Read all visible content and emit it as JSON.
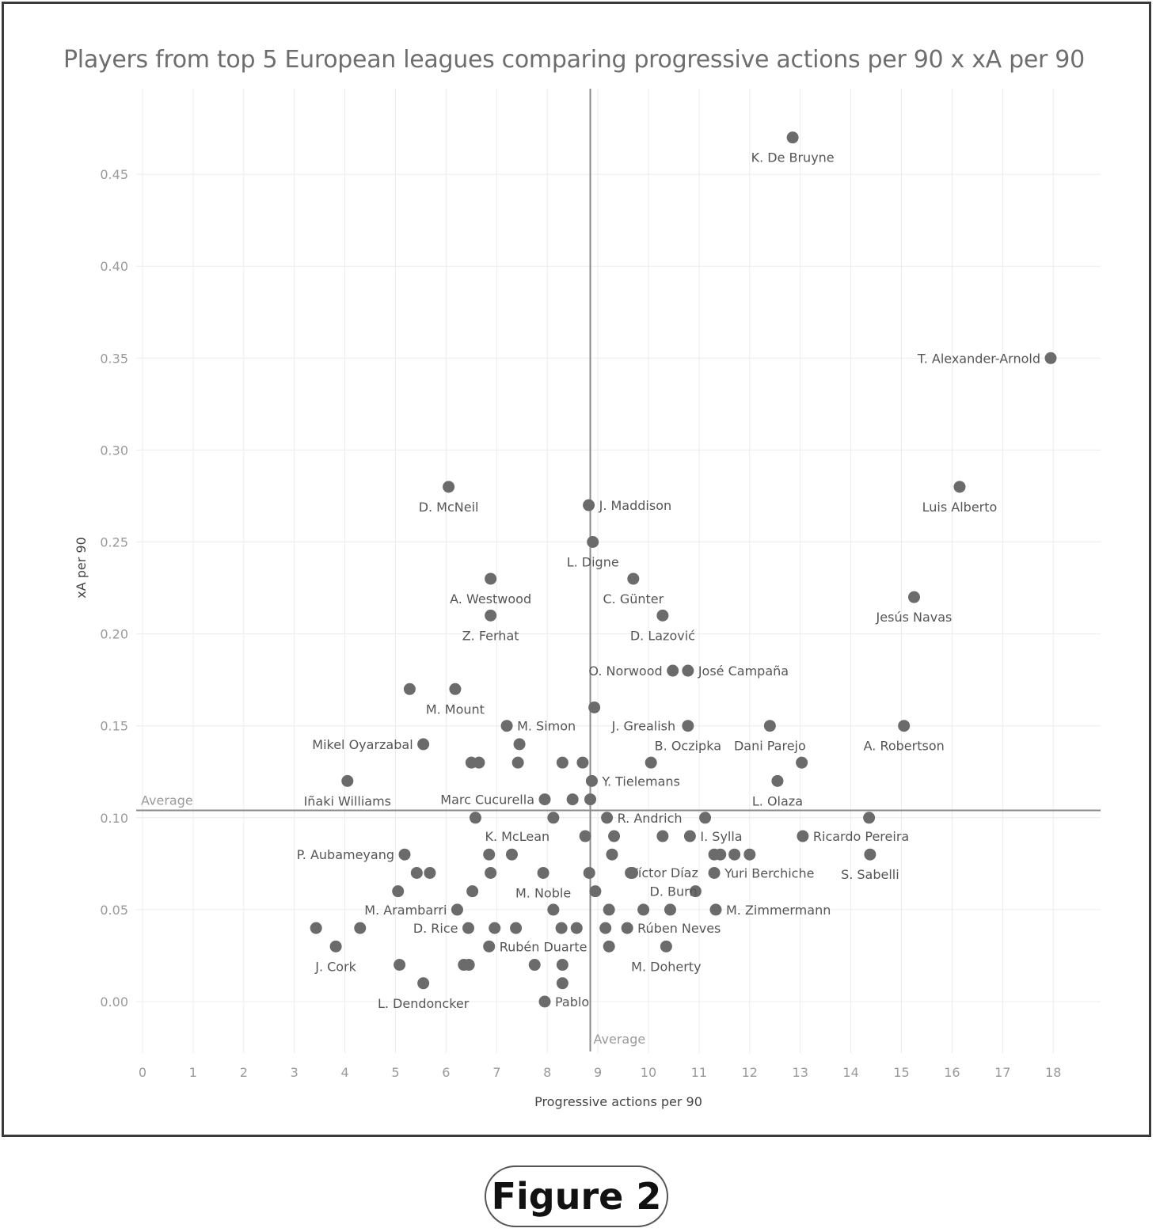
{
  "figure_label": "Figure 2",
  "chart_data": {
    "type": "scatter",
    "title": "Players from top 5 European leagues comparing progressive actions per 90 x xA per 90",
    "xlabel": "Progressive actions per 90",
    "ylabel": "xA per 90",
    "xlim": [
      0,
      19
    ],
    "ylim": [
      -0.027,
      0.495
    ],
    "xticks": [
      0,
      1,
      2,
      3,
      4,
      5,
      6,
      7,
      8,
      9,
      10,
      11,
      12,
      13,
      14,
      15,
      16,
      17,
      18
    ],
    "yticks": [
      0.0,
      0.05,
      0.1,
      0.15,
      0.2,
      0.25,
      0.3,
      0.35,
      0.4,
      0.45
    ],
    "ytick_labels": [
      "0.00",
      "0.05",
      "0.10",
      "0.15",
      "0.20",
      "0.25",
      "0.30",
      "0.35",
      "0.40",
      "0.45"
    ],
    "grid": true,
    "colors": {
      "point": "#6b6b6b",
      "grid": "#ececec",
      "reference_line": "#8a8a8a"
    },
    "reference_lines": {
      "x_average": {
        "value": 8.85,
        "label": "Average"
      },
      "y_average": {
        "value": 0.104,
        "label": "Average"
      }
    },
    "labeled_points": [
      {
        "name": "K. De Bruyne",
        "x": 12.85,
        "y": 0.47,
        "label_pos": "below"
      },
      {
        "name": "T. Alexander-Arnold",
        "x": 17.95,
        "y": 0.35,
        "label_pos": "left"
      },
      {
        "name": "D. McNeil",
        "x": 6.05,
        "y": 0.28,
        "label_pos": "below"
      },
      {
        "name": "J. Maddison",
        "x": 8.82,
        "y": 0.27,
        "label_pos": "right"
      },
      {
        "name": "Luis Alberto",
        "x": 16.15,
        "y": 0.28,
        "label_pos": "below"
      },
      {
        "name": "L. Digne",
        "x": 8.9,
        "y": 0.25,
        "label_pos": "below"
      },
      {
        "name": "A. Westwood",
        "x": 6.88,
        "y": 0.23,
        "label_pos": "below"
      },
      {
        "name": "C. Günter",
        "x": 9.7,
        "y": 0.23,
        "label_pos": "below"
      },
      {
        "name": "Jesús Navas",
        "x": 15.25,
        "y": 0.22,
        "label_pos": "below"
      },
      {
        "name": "Z. Ferhat",
        "x": 6.88,
        "y": 0.21,
        "label_pos": "below"
      },
      {
        "name": "D. Lazović",
        "x": 10.28,
        "y": 0.21,
        "label_pos": "below"
      },
      {
        "name": "O. Norwood",
        "x": 10.48,
        "y": 0.18,
        "label_pos": "left"
      },
      {
        "name": "José Campaña",
        "x": 10.78,
        "y": 0.18,
        "label_pos": "right"
      },
      {
        "name": "M. Mount",
        "x": 6.18,
        "y": 0.17,
        "label_pos": "below"
      },
      {
        "name": "J. Grealish",
        "x": 8.93,
        "y": 0.16,
        "label_pos": "right-below"
      },
      {
        "name": "M. Simon",
        "x": 7.2,
        "y": 0.15,
        "label_pos": "right"
      },
      {
        "name": "B. Oczipka",
        "x": 10.78,
        "y": 0.15,
        "label_pos": "below"
      },
      {
        "name": "Dani Parejo",
        "x": 12.4,
        "y": 0.15,
        "label_pos": "below"
      },
      {
        "name": "A. Robertson",
        "x": 15.05,
        "y": 0.15,
        "label_pos": "below"
      },
      {
        "name": "Mikel Oyarzabal",
        "x": 5.55,
        "y": 0.14,
        "label_pos": "left"
      },
      {
        "name": "Y. Tielemans",
        "x": 8.88,
        "y": 0.12,
        "label_pos": "right"
      },
      {
        "name": "Iñaki Williams",
        "x": 4.05,
        "y": 0.12,
        "label_pos": "below"
      },
      {
        "name": "L. Olaza",
        "x": 12.55,
        "y": 0.12,
        "label_pos": "below"
      },
      {
        "name": "Marc Cucurella",
        "x": 7.95,
        "y": 0.11,
        "label_pos": "left"
      },
      {
        "name": "R. Andrich",
        "x": 9.18,
        "y": 0.1,
        "label_pos": "right"
      },
      {
        "name": "K. McLean",
        "x": 6.58,
        "y": 0.1,
        "label_pos": "right-below"
      },
      {
        "name": "I. Sylla",
        "x": 10.82,
        "y": 0.09,
        "label_pos": "right"
      },
      {
        "name": "Ricardo Pereira",
        "x": 13.05,
        "y": 0.09,
        "label_pos": "right"
      },
      {
        "name": "P. Aubameyang",
        "x": 5.18,
        "y": 0.08,
        "label_pos": "left"
      },
      {
        "name": "Víctor Díaz",
        "x": 9.28,
        "y": 0.08,
        "label_pos": "right-below"
      },
      {
        "name": "S. Sabelli",
        "x": 14.38,
        "y": 0.08,
        "label_pos": "below"
      },
      {
        "name": "Yuri Berchiche",
        "x": 11.3,
        "y": 0.07,
        "label_pos": "right"
      },
      {
        "name": "M. Noble",
        "x": 7.92,
        "y": 0.07,
        "label_pos": "below"
      },
      {
        "name": "D. Burn",
        "x": 9.68,
        "y": 0.07,
        "label_pos": "right-below"
      },
      {
        "name": "M. Arambarri",
        "x": 6.22,
        "y": 0.05,
        "label_pos": "left"
      },
      {
        "name": "M. Zimmermann",
        "x": 11.33,
        "y": 0.05,
        "label_pos": "right"
      },
      {
        "name": "D. Rice",
        "x": 6.44,
        "y": 0.04,
        "label_pos": "left"
      },
      {
        "name": "Rúben Neves",
        "x": 9.58,
        "y": 0.04,
        "label_pos": "right"
      },
      {
        "name": "Rubén Duarte",
        "x": 6.85,
        "y": 0.03,
        "label_pos": "right"
      },
      {
        "name": "J. Cork",
        "x": 3.82,
        "y": 0.03,
        "label_pos": "below"
      },
      {
        "name": "M. Doherty",
        "x": 10.35,
        "y": 0.03,
        "label_pos": "below"
      },
      {
        "name": "L. Dendoncker",
        "x": 5.55,
        "y": 0.01,
        "label_pos": "below"
      },
      {
        "name": "Pablo",
        "x": 7.95,
        "y": 0.0,
        "label_pos": "right"
      }
    ],
    "unlabeled_points": [
      {
        "x": 5.28,
        "y": 0.17
      },
      {
        "x": 7.45,
        "y": 0.14
      },
      {
        "x": 6.5,
        "y": 0.13
      },
      {
        "x": 6.65,
        "y": 0.13
      },
      {
        "x": 7.42,
        "y": 0.13
      },
      {
        "x": 8.3,
        "y": 0.13
      },
      {
        "x": 8.7,
        "y": 0.13
      },
      {
        "x": 10.05,
        "y": 0.13
      },
      {
        "x": 13.03,
        "y": 0.13
      },
      {
        "x": 8.5,
        "y": 0.11
      },
      {
        "x": 8.85,
        "y": 0.11
      },
      {
        "x": 8.12,
        "y": 0.1
      },
      {
        "x": 11.12,
        "y": 0.1
      },
      {
        "x": 14.36,
        "y": 0.1
      },
      {
        "x": 8.75,
        "y": 0.09
      },
      {
        "x": 9.32,
        "y": 0.09
      },
      {
        "x": 10.28,
        "y": 0.09
      },
      {
        "x": 6.85,
        "y": 0.08
      },
      {
        "x": 7.3,
        "y": 0.08
      },
      {
        "x": 11.3,
        "y": 0.08
      },
      {
        "x": 11.42,
        "y": 0.08
      },
      {
        "x": 11.7,
        "y": 0.08
      },
      {
        "x": 12.0,
        "y": 0.08
      },
      {
        "x": 5.42,
        "y": 0.07
      },
      {
        "x": 5.68,
        "y": 0.07
      },
      {
        "x": 6.88,
        "y": 0.07
      },
      {
        "x": 8.83,
        "y": 0.07
      },
      {
        "x": 9.65,
        "y": 0.07
      },
      {
        "x": 5.05,
        "y": 0.06
      },
      {
        "x": 6.52,
        "y": 0.06
      },
      {
        "x": 8.95,
        "y": 0.06
      },
      {
        "x": 10.93,
        "y": 0.06
      },
      {
        "x": 8.12,
        "y": 0.05
      },
      {
        "x": 9.22,
        "y": 0.05
      },
      {
        "x": 9.9,
        "y": 0.05
      },
      {
        "x": 10.43,
        "y": 0.05
      },
      {
        "x": 3.43,
        "y": 0.04
      },
      {
        "x": 4.3,
        "y": 0.04
      },
      {
        "x": 6.96,
        "y": 0.04
      },
      {
        "x": 7.38,
        "y": 0.04
      },
      {
        "x": 8.28,
        "y": 0.04
      },
      {
        "x": 8.58,
        "y": 0.04
      },
      {
        "x": 9.15,
        "y": 0.04
      },
      {
        "x": 9.22,
        "y": 0.03
      },
      {
        "x": 5.08,
        "y": 0.02
      },
      {
        "x": 6.35,
        "y": 0.02
      },
      {
        "x": 6.45,
        "y": 0.02
      },
      {
        "x": 7.75,
        "y": 0.02
      },
      {
        "x": 8.3,
        "y": 0.02
      },
      {
        "x": 8.3,
        "y": 0.01
      }
    ]
  }
}
